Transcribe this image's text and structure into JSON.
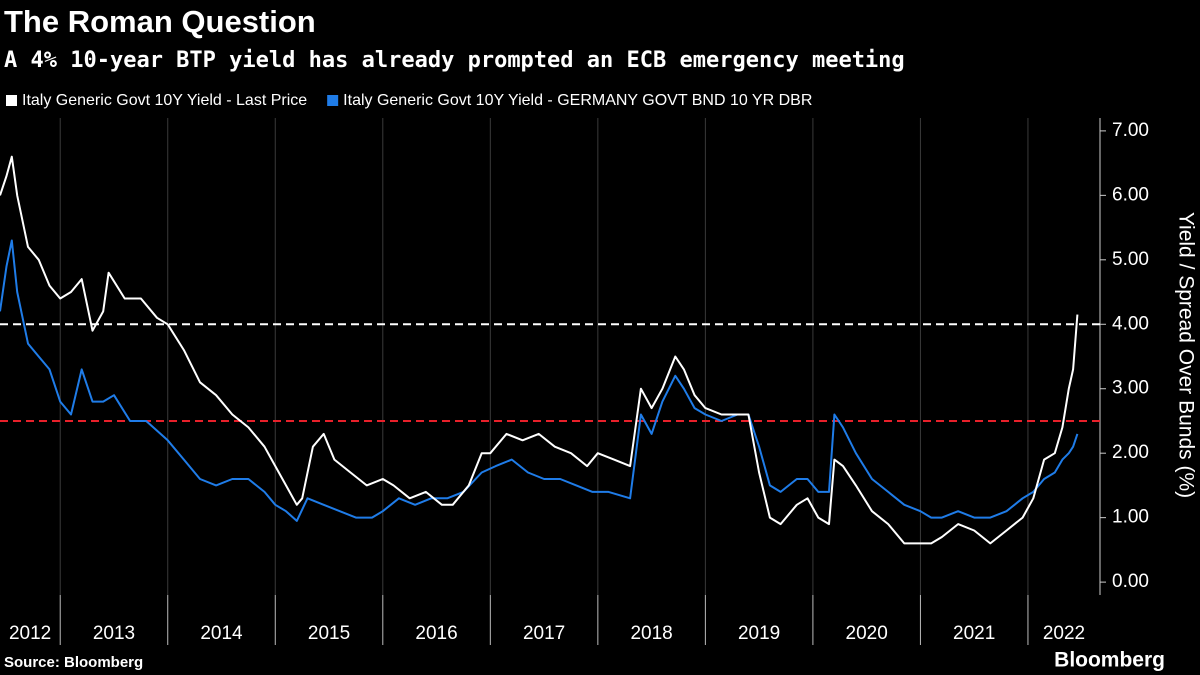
{
  "chart_data": {
    "type": "line",
    "title": "The Roman Question",
    "subtitle": "A 4% 10-year BTP yield has already prompted an ECB emergency meeting",
    "y_label": "Yield / Spread Over Bunds (%)",
    "source": "Source: Bloomberg",
    "logo": "Bloomberg",
    "xlim": [
      2012.44,
      2022.67
    ],
    "xticks": [
      2012,
      2013,
      2014,
      2015,
      2016,
      2017,
      2018,
      2019,
      2020,
      2021,
      2022
    ],
    "ylim": [
      -0.2,
      7.2
    ],
    "yticks": [
      {
        "value": 0,
        "label": "0.00"
      },
      {
        "value": 1,
        "label": "1.00"
      },
      {
        "value": 2,
        "label": "2.00"
      },
      {
        "value": 3,
        "label": "3.00"
      },
      {
        "value": 4,
        "label": "4.00"
      },
      {
        "value": 5,
        "label": "5.00"
      },
      {
        "value": 6,
        "label": "6.00"
      },
      {
        "value": 7,
        "label": "7.00"
      }
    ],
    "grid": true,
    "hlines": [
      {
        "value": 4,
        "color": "#ffffff"
      },
      {
        "value": 2.5,
        "color": "#e8202a"
      }
    ],
    "series": [
      {
        "name": "Italy Generic Govt 10Y Yield - Last Price",
        "color": "#ffffff",
        "x": [
          2012.44,
          2012.5,
          2012.55,
          2012.6,
          2012.7,
          2012.8,
          2012.9,
          2013.0,
          2013.1,
          2013.2,
          2013.3,
          2013.4,
          2013.45,
          2013.6,
          2013.75,
          2013.9,
          2014.0,
          2014.15,
          2014.3,
          2014.45,
          2014.6,
          2014.75,
          2014.9,
          2015.0,
          2015.1,
          2015.2,
          2015.25,
          2015.35,
          2015.45,
          2015.55,
          2015.7,
          2015.85,
          2016.0,
          2016.1,
          2016.25,
          2016.4,
          2016.55,
          2016.65,
          2016.8,
          2016.92,
          2017.0,
          2017.15,
          2017.3,
          2017.45,
          2017.6,
          2017.75,
          2017.9,
          2018.0,
          2018.15,
          2018.3,
          2018.4,
          2018.5,
          2018.6,
          2018.72,
          2018.8,
          2018.9,
          2019.0,
          2019.15,
          2019.3,
          2019.4,
          2019.5,
          2019.6,
          2019.7,
          2019.85,
          2019.95,
          2020.05,
          2020.15,
          2020.2,
          2020.28,
          2020.4,
          2020.55,
          2020.7,
          2020.85,
          2021.0,
          2021.1,
          2021.2,
          2021.35,
          2021.5,
          2021.65,
          2021.8,
          2021.95,
          2022.05,
          2022.15,
          2022.25,
          2022.32,
          2022.38,
          2022.42,
          2022.46
        ],
        "values": [
          6.0,
          6.3,
          6.6,
          6.0,
          5.2,
          5.0,
          4.6,
          4.4,
          4.5,
          4.7,
          3.9,
          4.2,
          4.8,
          4.4,
          4.4,
          4.1,
          4.0,
          3.6,
          3.1,
          2.9,
          2.6,
          2.4,
          2.1,
          1.8,
          1.5,
          1.2,
          1.3,
          2.1,
          2.3,
          1.9,
          1.7,
          1.5,
          1.6,
          1.5,
          1.3,
          1.4,
          1.2,
          1.2,
          1.5,
          2.0,
          2.0,
          2.3,
          2.2,
          2.3,
          2.1,
          2.0,
          1.8,
          2.0,
          1.9,
          1.8,
          3.0,
          2.7,
          3.0,
          3.5,
          3.3,
          2.9,
          2.7,
          2.6,
          2.6,
          2.6,
          1.7,
          1.0,
          0.9,
          1.2,
          1.3,
          1.0,
          0.9,
          1.9,
          1.8,
          1.5,
          1.1,
          0.9,
          0.6,
          0.6,
          0.6,
          0.7,
          0.9,
          0.8,
          0.6,
          0.8,
          1.0,
          1.3,
          1.9,
          2.0,
          2.4,
          3.0,
          3.3,
          4.15
        ]
      },
      {
        "name": "Italy Generic Govt 10Y Yield - GERMANY GOVT BND 10 YR DBR",
        "color": "#1f7ce8",
        "x": [
          2012.44,
          2012.5,
          2012.55,
          2012.6,
          2012.7,
          2012.8,
          2012.9,
          2013.0,
          2013.1,
          2013.2,
          2013.3,
          2013.4,
          2013.5,
          2013.65,
          2013.8,
          2014.0,
          2014.15,
          2014.3,
          2014.45,
          2014.6,
          2014.75,
          2014.9,
          2015.0,
          2015.1,
          2015.2,
          2015.3,
          2015.45,
          2015.6,
          2015.75,
          2015.9,
          2016.0,
          2016.15,
          2016.3,
          2016.45,
          2016.6,
          2016.75,
          2016.92,
          2017.05,
          2017.2,
          2017.35,
          2017.5,
          2017.65,
          2017.8,
          2017.95,
          2018.1,
          2018.3,
          2018.4,
          2018.5,
          2018.6,
          2018.72,
          2018.8,
          2018.9,
          2019.0,
          2019.15,
          2019.3,
          2019.4,
          2019.5,
          2019.6,
          2019.7,
          2019.85,
          2019.95,
          2020.05,
          2020.15,
          2020.2,
          2020.28,
          2020.4,
          2020.55,
          2020.7,
          2020.85,
          2021.0,
          2021.1,
          2021.2,
          2021.35,
          2021.5,
          2021.65,
          2021.8,
          2021.95,
          2022.05,
          2022.15,
          2022.25,
          2022.32,
          2022.38,
          2022.42,
          2022.46
        ],
        "values": [
          4.2,
          4.9,
          5.3,
          4.5,
          3.7,
          3.5,
          3.3,
          2.8,
          2.6,
          3.3,
          2.8,
          2.8,
          2.9,
          2.5,
          2.5,
          2.2,
          1.9,
          1.6,
          1.5,
          1.6,
          1.6,
          1.4,
          1.2,
          1.1,
          0.95,
          1.3,
          1.2,
          1.1,
          1.0,
          1.0,
          1.1,
          1.3,
          1.2,
          1.3,
          1.3,
          1.4,
          1.7,
          1.8,
          1.9,
          1.7,
          1.6,
          1.6,
          1.5,
          1.4,
          1.4,
          1.3,
          2.6,
          2.3,
          2.8,
          3.2,
          3.0,
          2.7,
          2.6,
          2.5,
          2.6,
          2.6,
          2.1,
          1.5,
          1.4,
          1.6,
          1.6,
          1.4,
          1.4,
          2.6,
          2.4,
          2.0,
          1.6,
          1.4,
          1.2,
          1.1,
          1.0,
          1.0,
          1.1,
          1.0,
          1.0,
          1.1,
          1.3,
          1.4,
          1.6,
          1.7,
          1.9,
          2.0,
          2.1,
          2.3
        ]
      }
    ]
  }
}
